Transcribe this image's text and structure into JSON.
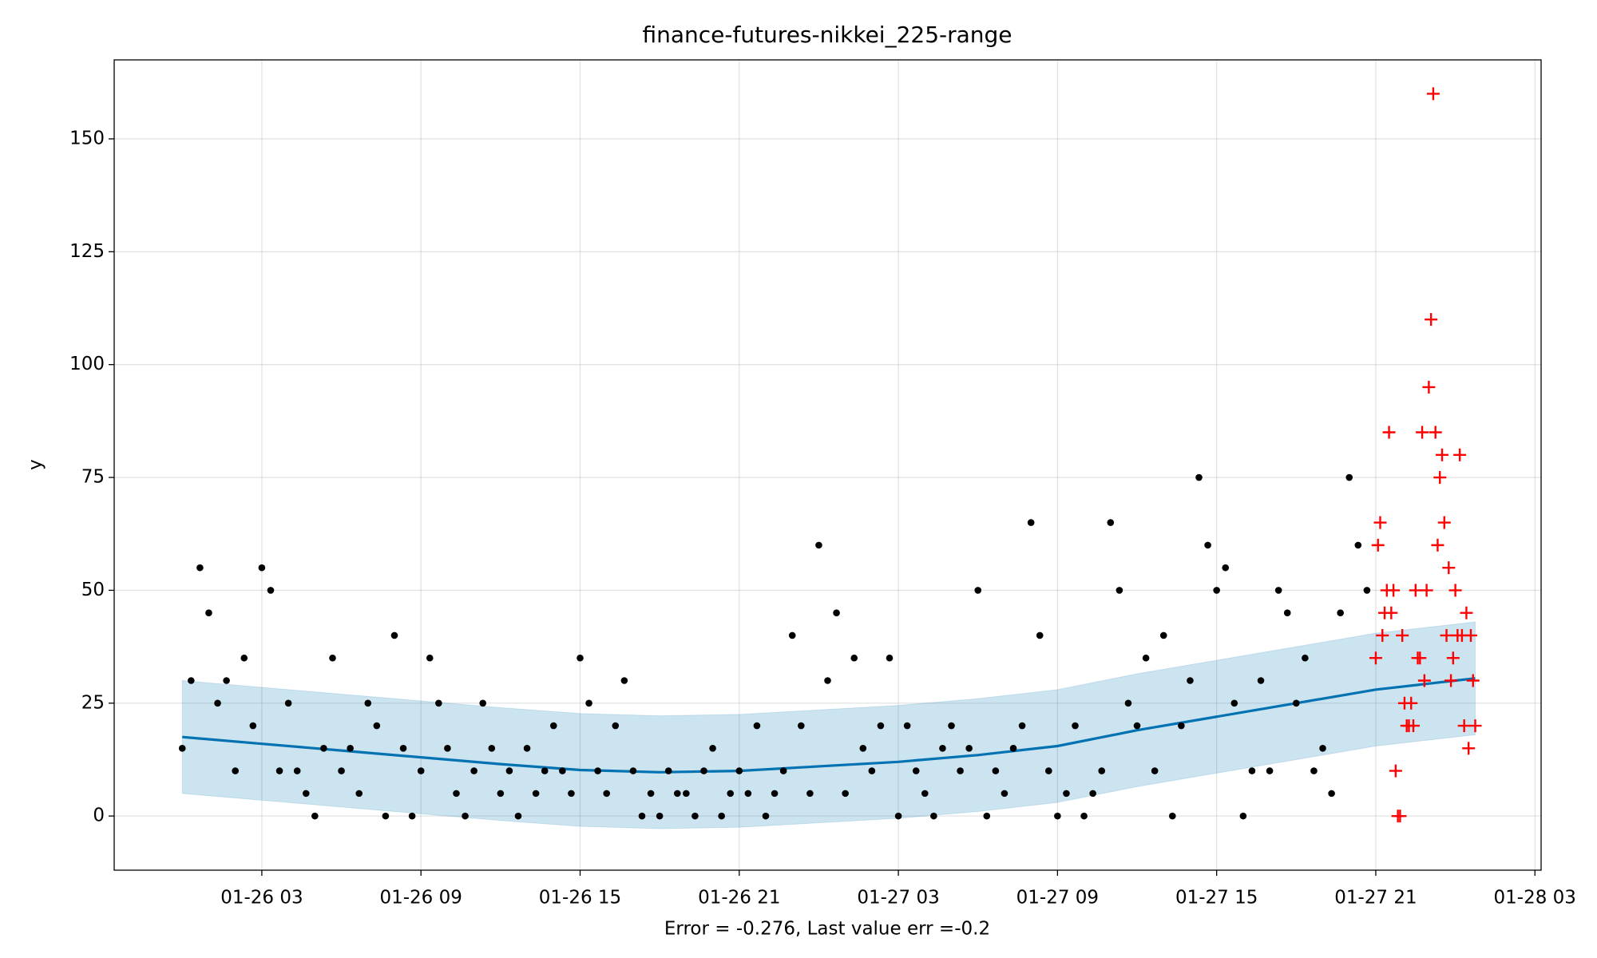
{
  "chart_data": {
    "type": "forecast",
    "title": "finance-futures-nikkei_225-range",
    "x_label": "Error = -0.276, Last value err =-0.2",
    "y_label": "y",
    "grid": true,
    "xlim": [
      "01-25 21:26",
      "01-28 03:14"
    ],
    "ylim": [
      -12,
      167.5
    ],
    "xticks": [
      {
        "value": "01-26 03:00",
        "label": "01-26 03"
      },
      {
        "value": "01-26 09:00",
        "label": "01-26 09"
      },
      {
        "value": "01-26 15:00",
        "label": "01-26 15"
      },
      {
        "value": "01-26 21:00",
        "label": "01-26 21"
      },
      {
        "value": "01-27 03:00",
        "label": "01-27 03"
      },
      {
        "value": "01-27 09:00",
        "label": "01-27 09"
      },
      {
        "value": "01-27 15:00",
        "label": "01-27 15"
      },
      {
        "value": "01-27 21:00",
        "label": "01-27 21"
      },
      {
        "value": "01-28 03:00",
        "label": "01-28 03"
      }
    ],
    "yticks": [
      0,
      25,
      50,
      75,
      100,
      125,
      150
    ],
    "forecast": {
      "color": "#0072b2",
      "band_color": "#0072b2",
      "x": [
        "01-26 00:00",
        "01-26 03:00",
        "01-26 06:00",
        "01-26 09:00",
        "01-26 12:00",
        "01-26 15:00",
        "01-26 18:00",
        "01-26 21:00",
        "01-27 00:00",
        "01-27 03:00",
        "01-27 06:00",
        "01-27 09:00",
        "01-27 12:00",
        "01-27 15:00",
        "01-27 18:00",
        "01-27 21:00",
        "01-28 00:00",
        "01-28 00:45"
      ],
      "values": [
        17.5,
        16,
        14.5,
        13,
        11.5,
        10.2,
        9.7,
        10,
        11,
        12,
        13.5,
        15.5,
        19,
        22,
        25,
        28,
        30,
        30.5
      ],
      "lower": [
        5,
        3.5,
        2,
        0.5,
        -1,
        -2.3,
        -2.8,
        -2.5,
        -1.5,
        -0.5,
        1,
        3,
        6.5,
        9.5,
        12.5,
        15.5,
        17.5,
        18
      ],
      "upper": [
        30,
        28.5,
        27,
        25.5,
        24,
        22.7,
        22.2,
        22.5,
        23.5,
        24.5,
        26,
        28,
        31.5,
        34.5,
        37.5,
        40.5,
        42.5,
        43
      ]
    },
    "observed": {
      "color": "#000000",
      "x": [
        "01-26 00:00",
        "01-26 00:20",
        "01-26 00:40",
        "01-26 01:00",
        "01-26 01:20",
        "01-26 01:40",
        "01-26 02:00",
        "01-26 02:20",
        "01-26 02:40",
        "01-26 03:00",
        "01-26 03:20",
        "01-26 03:40",
        "01-26 04:00",
        "01-26 04:20",
        "01-26 04:40",
        "01-26 05:00",
        "01-26 05:20",
        "01-26 05:40",
        "01-26 06:00",
        "01-26 06:20",
        "01-26 06:40",
        "01-26 07:00",
        "01-26 07:20",
        "01-26 07:40",
        "01-26 08:00",
        "01-26 08:20",
        "01-26 08:40",
        "01-26 09:00",
        "01-26 09:20",
        "01-26 09:40",
        "01-26 10:00",
        "01-26 10:20",
        "01-26 10:40",
        "01-26 11:00",
        "01-26 11:20",
        "01-26 11:40",
        "01-26 12:00",
        "01-26 12:20",
        "01-26 12:40",
        "01-26 13:00",
        "01-26 13:20",
        "01-26 13:40",
        "01-26 14:00",
        "01-26 14:20",
        "01-26 14:40",
        "01-26 15:00",
        "01-26 15:20",
        "01-26 15:40",
        "01-26 16:00",
        "01-26 16:20",
        "01-26 16:40",
        "01-26 17:00",
        "01-26 17:20",
        "01-26 17:40",
        "01-26 18:00",
        "01-26 18:20",
        "01-26 18:40",
        "01-26 19:00",
        "01-26 19:20",
        "01-26 19:40",
        "01-26 20:00",
        "01-26 20:20",
        "01-26 20:40",
        "01-26 21:00",
        "01-26 21:20",
        "01-26 21:40",
        "01-26 22:00",
        "01-26 22:20",
        "01-26 22:40",
        "01-26 23:00",
        "01-26 23:20",
        "01-26 23:40",
        "01-27 00:00",
        "01-27 00:20",
        "01-27 00:40",
        "01-27 01:00",
        "01-27 01:20",
        "01-27 01:40",
        "01-27 02:00",
        "01-27 02:20",
        "01-27 02:40",
        "01-27 03:00",
        "01-27 03:20",
        "01-27 03:40",
        "01-27 04:00",
        "01-27 04:20",
        "01-27 04:40",
        "01-27 05:00",
        "01-27 05:20",
        "01-27 05:40",
        "01-27 06:00",
        "01-27 06:20",
        "01-27 06:40",
        "01-27 07:00",
        "01-27 07:20",
        "01-27 07:40",
        "01-27 08:00",
        "01-27 08:20",
        "01-27 08:40",
        "01-27 09:00",
        "01-27 09:20",
        "01-27 09:40",
        "01-27 10:00",
        "01-27 10:20",
        "01-27 10:40",
        "01-27 11:00",
        "01-27 11:20",
        "01-27 11:40",
        "01-27 12:00",
        "01-27 12:20",
        "01-27 12:40",
        "01-27 13:00",
        "01-27 13:20",
        "01-27 13:40",
        "01-27 14:00",
        "01-27 14:20",
        "01-27 14:40",
        "01-27 15:00",
        "01-27 15:20",
        "01-27 15:40",
        "01-27 16:00",
        "01-27 16:20",
        "01-27 16:40",
        "01-27 17:00",
        "01-27 17:20",
        "01-27 17:40",
        "01-27 18:00",
        "01-27 18:20",
        "01-27 18:40",
        "01-27 19:00",
        "01-27 19:20",
        "01-27 19:40",
        "01-27 20:00",
        "01-27 20:20",
        "01-27 20:40"
      ],
      "values": [
        15,
        30,
        55,
        45,
        25,
        30,
        10,
        35,
        20,
        55,
        50,
        10,
        25,
        10,
        5,
        0,
        15,
        35,
        10,
        15,
        5,
        25,
        20,
        0,
        40,
        15,
        0,
        10,
        35,
        25,
        15,
        5,
        0,
        10,
        25,
        15,
        5,
        10,
        0,
        15,
        5,
        10,
        20,
        10,
        5,
        35,
        25,
        10,
        5,
        20,
        30,
        10,
        0,
        5,
        0,
        10,
        5,
        5,
        0,
        10,
        15,
        0,
        5,
        10,
        5,
        20,
        0,
        5,
        10,
        40,
        20,
        5,
        60,
        30,
        45,
        5,
        35,
        15,
        10,
        20,
        35,
        0,
        20,
        10,
        5,
        0,
        15,
        20,
        10,
        15,
        50,
        0,
        10,
        5,
        15,
        20,
        65,
        40,
        10,
        0,
        5,
        20,
        0,
        5,
        10,
        65,
        50,
        25,
        20,
        35,
        10,
        40,
        0,
        20,
        30,
        75,
        60,
        50,
        55,
        25,
        0,
        10,
        30,
        10,
        50,
        45,
        25,
        35,
        10,
        15,
        5,
        45,
        75,
        60,
        50
      ]
    },
    "future": {
      "color": "#ff0000",
      "x": [
        "01-27 21:00",
        "01-27 21:05",
        "01-27 21:10",
        "01-27 21:15",
        "01-27 21:20",
        "01-27 21:25",
        "01-27 21:30",
        "01-27 21:35",
        "01-27 21:40",
        "01-27 21:45",
        "01-27 21:50",
        "01-27 21:55",
        "01-27 22:00",
        "01-27 22:05",
        "01-27 22:10",
        "01-27 22:15",
        "01-27 22:20",
        "01-27 22:25",
        "01-27 22:30",
        "01-27 22:35",
        "01-27 22:40",
        "01-27 22:45",
        "01-27 22:50",
        "01-27 22:55",
        "01-27 23:00",
        "01-27 23:05",
        "01-27 23:10",
        "01-27 23:15",
        "01-27 23:20",
        "01-27 23:25",
        "01-27 23:30",
        "01-27 23:35",
        "01-27 23:40",
        "01-27 23:45",
        "01-27 23:50",
        "01-27 23:55",
        "01-28 00:00",
        "01-28 00:05",
        "01-28 00:10",
        "01-28 00:15",
        "01-28 00:20",
        "01-28 00:25",
        "01-28 00:30",
        "01-28 00:35",
        "01-28 00:40",
        "01-28 00:45"
      ],
      "values": [
        35,
        60,
        65,
        40,
        45,
        50,
        85,
        45,
        50,
        10,
        0,
        0,
        40,
        25,
        20,
        20,
        25,
        20,
        50,
        35,
        35,
        85,
        30,
        50,
        95,
        110,
        160,
        85,
        60,
        75,
        80,
        65,
        40,
        55,
        30,
        35,
        50,
        40,
        80,
        40,
        20,
        45,
        15,
        40,
        30,
        20
      ]
    }
  }
}
